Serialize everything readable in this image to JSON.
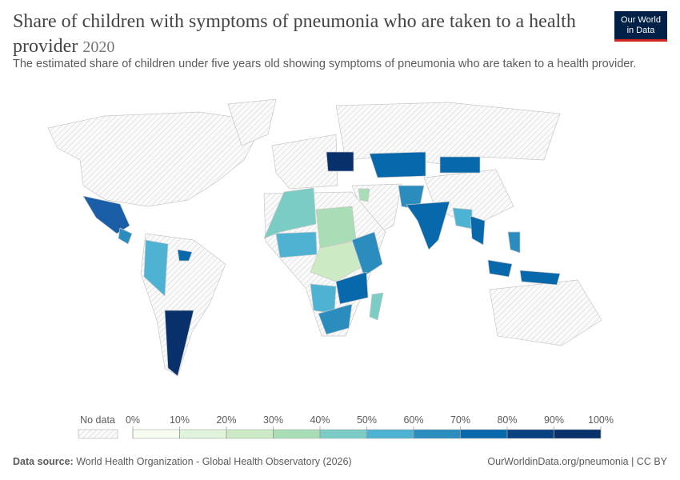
{
  "header": {
    "title": "Share of children with symptoms of pneumonia who are taken to a health provider",
    "year": "2020",
    "subtitle": "The estimated share of children under five years old showing symptoms of pneumonia who are taken to a health provider.",
    "logo": [
      "Our World",
      "in Data"
    ]
  },
  "legend": {
    "no_data": "No data",
    "ticks": [
      {
        "value": 0,
        "label": "0%"
      },
      {
        "value": 10,
        "label": "10%"
      },
      {
        "value": 20,
        "label": "20%"
      },
      {
        "value": 30,
        "label": "30%"
      },
      {
        "value": 40,
        "label": "40%"
      },
      {
        "value": 50,
        "label": "50%"
      },
      {
        "value": 60,
        "label": "60%"
      },
      {
        "value": 70,
        "label": "70%"
      },
      {
        "value": 80,
        "label": "80%"
      },
      {
        "value": 90,
        "label": "90%"
      },
      {
        "value": 100,
        "label": "100%"
      }
    ],
    "colors": [
      "#f7fcf0",
      "#e0f3db",
      "#ccebc5",
      "#a8ddb5",
      "#7bccc4",
      "#4eb3d3",
      "#2b8cbe",
      "#0868ac",
      "#084081",
      "#08306b"
    ]
  },
  "footer": {
    "source_label": "Data source:",
    "source": "World Health Organization - Global Health Observatory (2026)",
    "link": "OurWorldinData.org/pneumonia | CC BY"
  }
}
